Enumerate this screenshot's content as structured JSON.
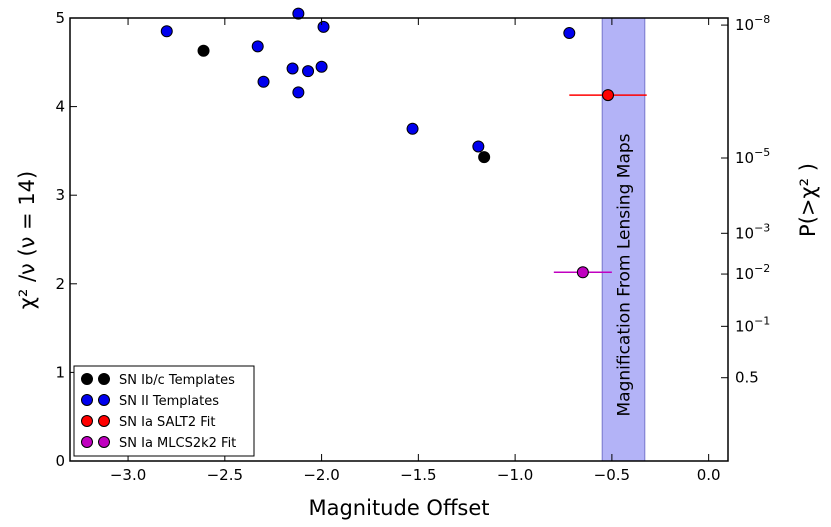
{
  "chart_data": {
    "type": "scatter",
    "xlabel": "Magnitude Offset",
    "ylabel": "χ² /ν (ν = 14)",
    "y2label": "P(>χ² )",
    "xlim": [
      -3.3,
      0.1
    ],
    "ylim": [
      0,
      5
    ],
    "x_ticks": [
      -3.0,
      -2.5,
      -2.0,
      -1.5,
      -1.0,
      -0.5,
      0.0
    ],
    "x_tick_labels": [
      "−3.0",
      "−2.5",
      "−2.0",
      "−1.5",
      "−1.0",
      "−0.5",
      "0.0"
    ],
    "y_ticks": [
      0,
      1,
      2,
      3,
      4,
      5
    ],
    "y_tick_labels": [
      "0",
      "1",
      "2",
      "3",
      "4",
      "5"
    ],
    "y2_ticks": [
      {
        "y": 4.92,
        "base": "10",
        "exp": "−8"
      },
      {
        "y": 3.42,
        "base": "10",
        "exp": "−5"
      },
      {
        "y": 2.57,
        "base": "10",
        "exp": "−3"
      },
      {
        "y": 2.11,
        "base": "10",
        "exp": "−2"
      },
      {
        "y": 1.52,
        "base": "10",
        "exp": "−1"
      },
      {
        "y": 0.94,
        "base": "0.5",
        "exp": ""
      }
    ],
    "shaded_region": {
      "x0": -0.55,
      "x1": -0.33,
      "color": "#b3b3f7",
      "label": "Magnification From Lensing Maps"
    },
    "series": [
      {
        "name": "SN Ib/c Templates",
        "color": "#000000",
        "points": [
          {
            "x": -2.61,
            "y": 4.63
          },
          {
            "x": -1.16,
            "y": 3.43
          }
        ]
      },
      {
        "name": "SN II Templates",
        "color": "#0000ee",
        "points": [
          {
            "x": -2.8,
            "y": 4.85
          },
          {
            "x": -2.33,
            "y": 4.68
          },
          {
            "x": -2.3,
            "y": 4.28
          },
          {
            "x": -2.15,
            "y": 4.43
          },
          {
            "x": -2.12,
            "y": 4.16
          },
          {
            "x": -2.07,
            "y": 4.4
          },
          {
            "x": -2.0,
            "y": 4.45
          },
          {
            "x": -2.12,
            "y": 5.05
          },
          {
            "x": -1.99,
            "y": 4.9
          },
          {
            "x": -1.53,
            "y": 3.75
          },
          {
            "x": -1.19,
            "y": 3.55
          },
          {
            "x": -0.72,
            "y": 4.83
          }
        ]
      },
      {
        "name": "SN Ia SALT2 Fit",
        "color": "#ff0000",
        "points": [
          {
            "x": -0.52,
            "y": 4.13,
            "xerr_low": 0.2,
            "xerr_high": 0.2
          }
        ]
      },
      {
        "name": "SN Ia MLCS2k2 Fit",
        "color": "#c000c0",
        "points": [
          {
            "x": -0.65,
            "y": 2.13,
            "xerr_low": 0.15,
            "xerr_high": 0.15
          }
        ]
      }
    ],
    "legend_position": "lower-left"
  }
}
